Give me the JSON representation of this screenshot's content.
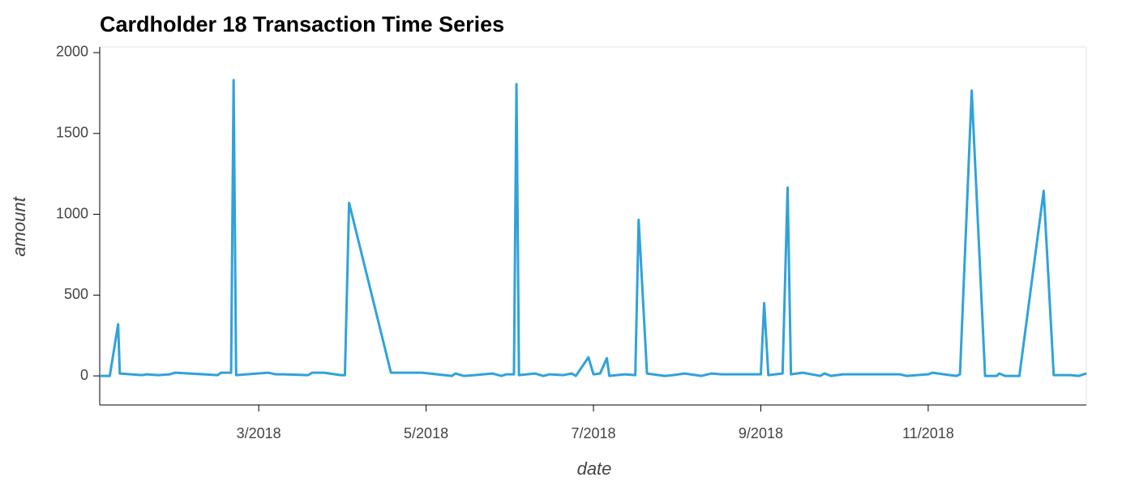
{
  "chart_data": {
    "type": "line",
    "title": "Cardholder 18 Transaction Time Series",
    "x_label": "date",
    "y_label": "amount",
    "x": [
      1.1,
      1.22,
      1.32,
      1.34,
      1.61,
      1.66,
      1.8,
      1.94,
      2.0,
      2.51,
      2.55,
      2.67,
      2.7,
      2.73,
      3.11,
      3.2,
      3.3,
      3.59,
      3.64,
      3.78,
      3.98,
      4.03,
      4.08,
      4.58,
      4.95,
      5.31,
      5.35,
      5.45,
      5.58,
      5.79,
      5.9,
      5.96,
      6.05,
      6.08,
      6.11,
      6.3,
      6.4,
      6.48,
      6.64,
      6.74,
      6.79,
      6.94,
      7.0,
      7.08,
      7.16,
      7.19,
      7.37,
      7.5,
      7.54,
      7.64,
      7.85,
      7.95,
      8.09,
      8.29,
      8.41,
      8.53,
      9.0,
      9.04,
      9.09,
      9.26,
      9.32,
      9.36,
      9.5,
      9.71,
      9.76,
      9.84,
      9.98,
      10.66,
      10.74,
      11.0,
      11.05,
      11.19,
      11.34,
      11.38,
      11.52,
      11.68,
      11.82,
      11.85,
      11.92,
      12.09,
      12.38,
      12.5,
      12.7,
      12.8,
      12.89
    ],
    "series": [
      {
        "name": "amount",
        "color": "#30a2da",
        "values": [
          0,
          0,
          320,
          15,
          5,
          10,
          5,
          10,
          20,
          5,
          20,
          20,
          1830,
          5,
          20,
          10,
          10,
          5,
          20,
          20,
          5,
          5,
          1070,
          20,
          20,
          0,
          15,
          0,
          5,
          15,
          0,
          10,
          10,
          1805,
          5,
          15,
          0,
          10,
          5,
          15,
          0,
          115,
          10,
          15,
          110,
          0,
          10,
          5,
          965,
          15,
          0,
          5,
          15,
          0,
          15,
          10,
          10,
          450,
          5,
          15,
          1165,
          10,
          20,
          0,
          15,
          0,
          10,
          10,
          0,
          10,
          20,
          10,
          0,
          10,
          1765,
          0,
          0,
          15,
          0,
          0,
          1145,
          5,
          5,
          0,
          15
        ]
      }
    ],
    "xlim": [
      1.1,
      12.89
    ],
    "xticks": [
      {
        "value": 3,
        "label": "3/2018"
      },
      {
        "value": 5,
        "label": "5/2018"
      },
      {
        "value": 7,
        "label": "7/2018"
      },
      {
        "value": 9,
        "label": "9/2018"
      },
      {
        "value": 11,
        "label": "11/2018"
      }
    ],
    "ylim": [
      -180,
      2035
    ],
    "yticks": [
      0,
      500,
      1000,
      1500,
      2000
    ]
  }
}
